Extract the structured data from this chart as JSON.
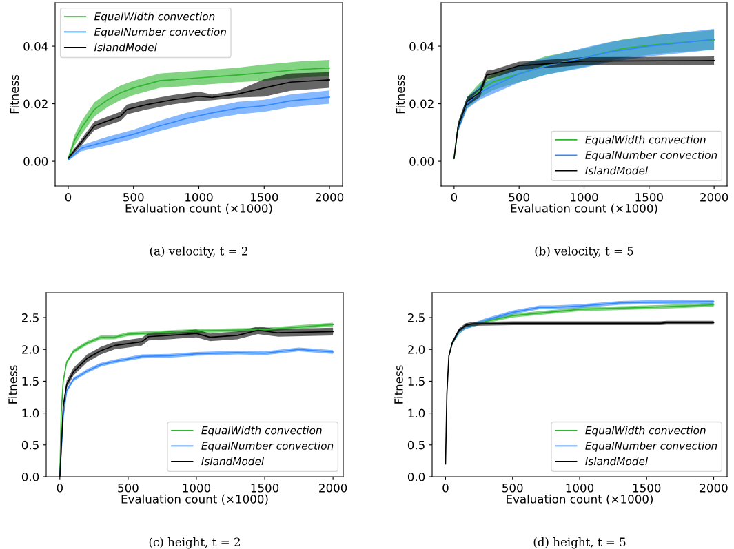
{
  "chart_data": [
    {
      "type": "line",
      "xlabel": "Evaluation count (×1000)",
      "ylabel": "Fitness",
      "annotations": [
        "(a) velocity, t = 2"
      ],
      "xlim": [
        -100,
        2100
      ],
      "ylim": [
        -0.0086,
        0.0551
      ],
      "xticks": [
        0,
        500,
        1000,
        1500,
        2000
      ],
      "yticks": [
        {
          "value": 0,
          "label": "0.00"
        },
        {
          "value": 0.02,
          "label": "0.02"
        },
        {
          "value": 0.04,
          "label": "0.04"
        }
      ],
      "legend": "top left",
      "grid": false,
      "series": [
        {
          "name": "EqualWidth convection",
          "color": "#2fb52f",
          "x": [
            0,
            50,
            100,
            200,
            300,
            400,
            500,
            700,
            1000,
            1300,
            1500,
            1800,
            2000
          ],
          "values": [
            0.001,
            0.0074,
            0.0115,
            0.018,
            0.0213,
            0.0238,
            0.0255,
            0.028,
            0.029,
            0.03,
            0.0308,
            0.032,
            0.0324
          ],
          "lower": [
            0.0005,
            0.0055,
            0.0092,
            0.0155,
            0.0188,
            0.0213,
            0.023,
            0.0255,
            0.0265,
            0.0275,
            0.028,
            0.0292,
            0.0296
          ],
          "upper": [
            0.0015,
            0.0093,
            0.0138,
            0.0205,
            0.0238,
            0.0263,
            0.028,
            0.0305,
            0.0315,
            0.0325,
            0.0336,
            0.0348,
            0.0352
          ]
        },
        {
          "name": "EqualNumber convection",
          "color": "#3388ff",
          "x": [
            0,
            100,
            300,
            500,
            700,
            900,
            1100,
            1300,
            1500,
            1700,
            2000
          ],
          "values": [
            0.0005,
            0.0045,
            0.007,
            0.0094,
            0.0123,
            0.0148,
            0.0168,
            0.0185,
            0.0193,
            0.021,
            0.0223
          ],
          "lower": [
            0.0002,
            0.0035,
            0.0055,
            0.0078,
            0.0105,
            0.0128,
            0.0148,
            0.0163,
            0.0172,
            0.0188,
            0.02
          ],
          "upper": [
            0.0008,
            0.0055,
            0.0085,
            0.011,
            0.0141,
            0.0168,
            0.0188,
            0.0207,
            0.0214,
            0.0232,
            0.0246
          ]
        },
        {
          "name": "IslandModel",
          "color": "#000000",
          "x": [
            0,
            100,
            200,
            300,
            400,
            450,
            600,
            800,
            1000,
            1100,
            1300,
            1500,
            1700,
            2000
          ],
          "values": [
            0.001,
            0.0066,
            0.0123,
            0.014,
            0.0156,
            0.018,
            0.0197,
            0.0214,
            0.0226,
            0.0222,
            0.0234,
            0.0255,
            0.0275,
            0.0283
          ],
          "lower": [
            0.0005,
            0.0055,
            0.0108,
            0.0125,
            0.014,
            0.0163,
            0.018,
            0.0198,
            0.021,
            0.0212,
            0.0222,
            0.0225,
            0.0245,
            0.0255
          ],
          "upper": [
            0.0015,
            0.0077,
            0.0138,
            0.0155,
            0.0172,
            0.0197,
            0.0214,
            0.023,
            0.0242,
            0.0232,
            0.0246,
            0.0285,
            0.0305,
            0.031
          ]
        }
      ]
    },
    {
      "type": "line",
      "xlabel": "Evaluation count (×1000)",
      "ylabel": "Fitness",
      "annotations": [
        "(b) velocity, t = 5"
      ],
      "xlim": [
        -100,
        2100
      ],
      "ylim": [
        -0.0086,
        0.0551
      ],
      "xticks": [
        0,
        500,
        1000,
        1500,
        2000
      ],
      "yticks": [
        {
          "value": 0,
          "label": "0.00"
        },
        {
          "value": 0.02,
          "label": "0.02"
        },
        {
          "value": 0.04,
          "label": "0.04"
        }
      ],
      "legend": "bottom right",
      "grid": false,
      "series": [
        {
          "name": "EqualWidth convection",
          "color": "#2fb52f",
          "x": [
            0,
            30,
            100,
            200,
            300,
            500,
            700,
            1000,
            1300,
            1600,
            2000
          ],
          "values": [
            0.001,
            0.012,
            0.0204,
            0.0248,
            0.0276,
            0.0304,
            0.0332,
            0.036,
            0.0392,
            0.0408,
            0.0422
          ],
          "lower": [
            0.0005,
            0.0105,
            0.0184,
            0.0222,
            0.0248,
            0.0275,
            0.03,
            0.0328,
            0.036,
            0.0375,
            0.0388
          ],
          "upper": [
            0.0015,
            0.0135,
            0.0224,
            0.0274,
            0.0304,
            0.0333,
            0.0364,
            0.0392,
            0.0424,
            0.0441,
            0.0456
          ]
        },
        {
          "name": "EqualNumber convection",
          "color": "#3388ff",
          "x": [
            0,
            30,
            100,
            200,
            500,
            700,
            1000,
            1200,
            1500,
            2000
          ],
          "values": [
            null,
            0.0115,
            0.0202,
            0.024,
            0.0304,
            0.033,
            0.036,
            0.038,
            0.04,
            0.0424
          ],
          "lower": [
            0.0005,
            0.01,
            0.0182,
            0.0215,
            0.0274,
            0.03,
            0.0325,
            0.0345,
            0.0365,
            0.0388
          ],
          "upper": [
            0.0015,
            0.013,
            0.0222,
            0.0265,
            0.0334,
            0.036,
            0.0395,
            0.0415,
            0.0435,
            0.046
          ]
        },
        {
          "name": "IslandModel",
          "color": "#000000",
          "x": [
            0,
            30,
            100,
            200,
            250,
            300,
            500,
            700,
            1000,
            2000
          ],
          "values": [
            0.001,
            0.012,
            0.0208,
            0.024,
            0.03,
            0.0304,
            0.0332,
            0.0338,
            0.0348,
            0.035
          ],
          "lower": [
            0.0005,
            0.0105,
            0.0193,
            0.0225,
            0.0285,
            0.029,
            0.0318,
            0.0324,
            0.0334,
            0.0335
          ],
          "upper": [
            0.0015,
            0.0135,
            0.0223,
            0.0255,
            0.0315,
            0.0318,
            0.0346,
            0.0352,
            0.0362,
            0.0364
          ]
        }
      ]
    },
    {
      "type": "line",
      "xlabel": "Evaluation count (×1000)",
      "ylabel": "Fitness",
      "annotations": [
        "(c) height, t = 2"
      ],
      "xlim": [
        -100,
        2075
      ],
      "ylim": [
        0,
        2.89
      ],
      "xticks": [
        0,
        500,
        1000,
        1500,
        2000
      ],
      "yticks": [
        {
          "value": 0,
          "label": "0.0"
        },
        {
          "value": 0.5,
          "label": "0.5"
        },
        {
          "value": 1,
          "label": "1.0"
        },
        {
          "value": 1.5,
          "label": "1.5"
        },
        {
          "value": 2,
          "label": "2.0"
        },
        {
          "value": 2.5,
          "label": "2.5"
        }
      ],
      "legend": "bottom right",
      "grid": false,
      "series": [
        {
          "name": "EqualWidth convection",
          "color": "#2fb52f",
          "x": [
            0,
            10,
            25,
            50,
            100,
            200,
            300,
            400,
            500,
            700,
            1000,
            1500,
            2000
          ],
          "values": [
            0,
            1.0,
            1.5,
            1.8,
            1.97,
            2.1,
            2.19,
            2.19,
            2.24,
            2.26,
            2.29,
            2.31,
            2.39
          ],
          "lower": [
            0,
            0.97,
            1.47,
            1.77,
            1.94,
            2.07,
            2.16,
            2.16,
            2.21,
            2.23,
            2.26,
            2.28,
            2.36
          ],
          "upper": [
            0,
            1.03,
            1.53,
            1.83,
            2.0,
            2.13,
            2.22,
            2.22,
            2.27,
            2.29,
            2.32,
            2.34,
            2.42
          ]
        },
        {
          "name": "EqualNumber convection",
          "color": "#3388ff",
          "x": [
            0,
            25,
            50,
            100,
            200,
            300,
            400,
            500,
            600,
            800,
            1000,
            1300,
            1500,
            1750,
            2000
          ],
          "values": [
            0,
            0.95,
            1.35,
            1.53,
            1.66,
            1.76,
            1.81,
            1.85,
            1.89,
            1.9,
            1.93,
            1.95,
            1.94,
            2.0,
            1.96
          ],
          "lower": [
            0,
            0.92,
            1.32,
            1.5,
            1.63,
            1.73,
            1.78,
            1.82,
            1.86,
            1.87,
            1.9,
            1.92,
            1.91,
            1.97,
            1.93
          ],
          "upper": [
            0,
            0.98,
            1.38,
            1.56,
            1.69,
            1.79,
            1.84,
            1.88,
            1.92,
            1.93,
            1.96,
            1.98,
            1.97,
            2.03,
            1.99
          ]
        },
        {
          "name": "IslandModel",
          "color": "#000000",
          "x": [
            0,
            25,
            50,
            100,
            200,
            300,
            400,
            500,
            600,
            650,
            800,
            1000,
            1100,
            1300,
            1450,
            1600,
            2000
          ],
          "values": [
            0,
            1.1,
            1.45,
            1.65,
            1.86,
            1.98,
            2.06,
            2.09,
            2.12,
            2.2,
            2.22,
            2.25,
            2.19,
            2.22,
            2.3,
            2.26,
            2.28
          ],
          "lower": [
            0,
            1.04,
            1.39,
            1.59,
            1.8,
            1.92,
            2.0,
            2.03,
            2.06,
            2.14,
            2.16,
            2.19,
            2.13,
            2.16,
            2.24,
            2.2,
            2.22
          ],
          "upper": [
            0,
            1.16,
            1.51,
            1.71,
            1.92,
            2.04,
            2.12,
            2.15,
            2.18,
            2.26,
            2.28,
            2.31,
            2.25,
            2.28,
            2.36,
            2.32,
            2.34
          ]
        }
      ]
    },
    {
      "type": "line",
      "xlabel": "Evaluation count (×1000)",
      "ylabel": "Fitness",
      "annotations": [
        "(d) height, t = 5"
      ],
      "xlim": [
        -100,
        2100
      ],
      "ylim": [
        0,
        2.89
      ],
      "xticks": [
        0,
        500,
        1000,
        1500,
        2000
      ],
      "yticks": [
        {
          "value": 0,
          "label": "0.0"
        },
        {
          "value": 0.5,
          "label": "0.5"
        },
        {
          "value": 1,
          "label": "1.0"
        },
        {
          "value": 1.5,
          "label": "1.5"
        },
        {
          "value": 2,
          "label": "2.0"
        },
        {
          "value": 2.5,
          "label": "2.5"
        }
      ],
      "legend": "bottom right",
      "grid": false,
      "series": [
        {
          "name": "EqualWidth convection",
          "color": "#2fb52f",
          "x": [
            0,
            10,
            25,
            50,
            100,
            150,
            200,
            300,
            500,
            700,
            1000,
            1500,
            2000
          ],
          "values": [
            null,
            null,
            null,
            null,
            null,
            null,
            null,
            2.44,
            2.53,
            2.57,
            2.63,
            2.66,
            2.7
          ],
          "lower": [
            0.17,
            1.27,
            1.87,
            2.07,
            2.24,
            2.33,
            2.35,
            2.41,
            2.5,
            2.54,
            2.6,
            2.63,
            2.67
          ],
          "upper": [
            0.23,
            1.33,
            1.93,
            2.13,
            2.3,
            2.39,
            2.41,
            2.47,
            2.56,
            2.6,
            2.66,
            2.69,
            2.73
          ]
        },
        {
          "name": "EqualNumber convection",
          "color": "#3388ff",
          "x": [
            0,
            10,
            25,
            50,
            100,
            150,
            200,
            300,
            500,
            700,
            800,
            1000,
            1300,
            1500,
            2000
          ],
          "values": [
            null,
            null,
            null,
            null,
            null,
            null,
            null,
            2.46,
            2.58,
            2.66,
            2.66,
            2.68,
            2.73,
            2.74,
            2.75
          ],
          "lower": [
            0.17,
            1.27,
            1.87,
            2.07,
            2.24,
            2.32,
            2.35,
            2.43,
            2.55,
            2.63,
            2.63,
            2.65,
            2.7,
            2.71,
            2.72
          ],
          "upper": [
            0.23,
            1.33,
            1.93,
            2.13,
            2.3,
            2.38,
            2.41,
            2.49,
            2.61,
            2.69,
            2.69,
            2.71,
            2.76,
            2.77,
            2.78
          ]
        },
        {
          "name": "IslandModel",
          "color": "#000000",
          "x": [
            0,
            10,
            25,
            50,
            100,
            150,
            200,
            500,
            1000,
            1600,
            1650,
            2000
          ],
          "values": [
            0.2,
            1.3,
            1.9,
            2.1,
            2.3,
            2.38,
            2.4,
            2.41,
            2.41,
            2.41,
            2.42,
            2.42
          ],
          "lower": [
            0.17,
            1.27,
            1.87,
            2.07,
            2.27,
            2.35,
            2.37,
            2.38,
            2.38,
            2.38,
            2.39,
            2.39
          ],
          "upper": [
            0.23,
            1.33,
            1.93,
            2.13,
            2.33,
            2.41,
            2.43,
            2.44,
            2.44,
            2.44,
            2.45,
            2.45
          ]
        }
      ]
    }
  ]
}
